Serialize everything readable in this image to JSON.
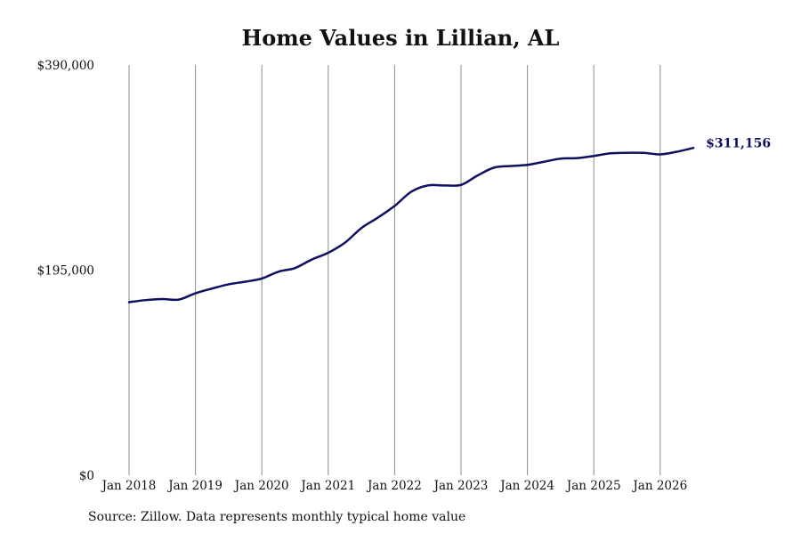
{
  "colors": {
    "line": "#101060",
    "grid": "#8c8c8c",
    "text": "#111111",
    "background": "#ffffff"
  },
  "chart_data": {
    "type": "line",
    "title": "Home Values in Lillian, AL",
    "xlabel": "",
    "ylabel": "",
    "ylim": [
      0,
      390000
    ],
    "y_ticks": [
      0,
      195000,
      390000
    ],
    "y_tick_labels": [
      "$0",
      "$195,000",
      "$390,000"
    ],
    "x_ticks": [
      "2018-01",
      "2019-01",
      "2020-01",
      "2021-01",
      "2022-01",
      "2023-01",
      "2024-01",
      "2025-01",
      "2026-01"
    ],
    "x_tick_labels": [
      "Jan 2018",
      "Jan 2019",
      "Jan 2020",
      "Jan 2021",
      "Jan 2022",
      "Jan 2023",
      "Jan 2024",
      "Jan 2025",
      "Jan 2026"
    ],
    "grid": "vertical",
    "series": [
      {
        "values": [
          [
            "2018-01",
            164500
          ],
          [
            "2018-04",
            166500
          ],
          [
            "2018-07",
            167500
          ],
          [
            "2018-10",
            167000
          ],
          [
            "2019-01",
            173000
          ],
          [
            "2019-04",
            177500
          ],
          [
            "2019-07",
            181500
          ],
          [
            "2019-10",
            184000
          ],
          [
            "2020-01",
            187000
          ],
          [
            "2020-04",
            193500
          ],
          [
            "2020-07",
            197000
          ],
          [
            "2020-10",
            205000
          ],
          [
            "2021-01",
            211500
          ],
          [
            "2021-04",
            221000
          ],
          [
            "2021-07",
            235000
          ],
          [
            "2021-10",
            245000
          ],
          [
            "2022-01",
            256000
          ],
          [
            "2022-04",
            269500
          ],
          [
            "2022-07",
            275500
          ],
          [
            "2022-10",
            275500
          ],
          [
            "2023-01",
            276000
          ],
          [
            "2023-04",
            285000
          ],
          [
            "2023-07",
            292500
          ],
          [
            "2023-10",
            294000
          ],
          [
            "2024-01",
            295000
          ],
          [
            "2024-04",
            298000
          ],
          [
            "2024-07",
            301000
          ],
          [
            "2024-10",
            301500
          ],
          [
            "2025-01",
            303500
          ],
          [
            "2025-04",
            306000
          ],
          [
            "2025-07",
            306500
          ],
          [
            "2025-10",
            306500
          ],
          [
            "2026-01",
            305000
          ],
          [
            "2026-04",
            307500
          ],
          [
            "2026-07",
            311156
          ]
        ]
      }
    ],
    "end_label": "$311,156",
    "source_note": "Source: Zillow. Data represents monthly typical home value"
  }
}
